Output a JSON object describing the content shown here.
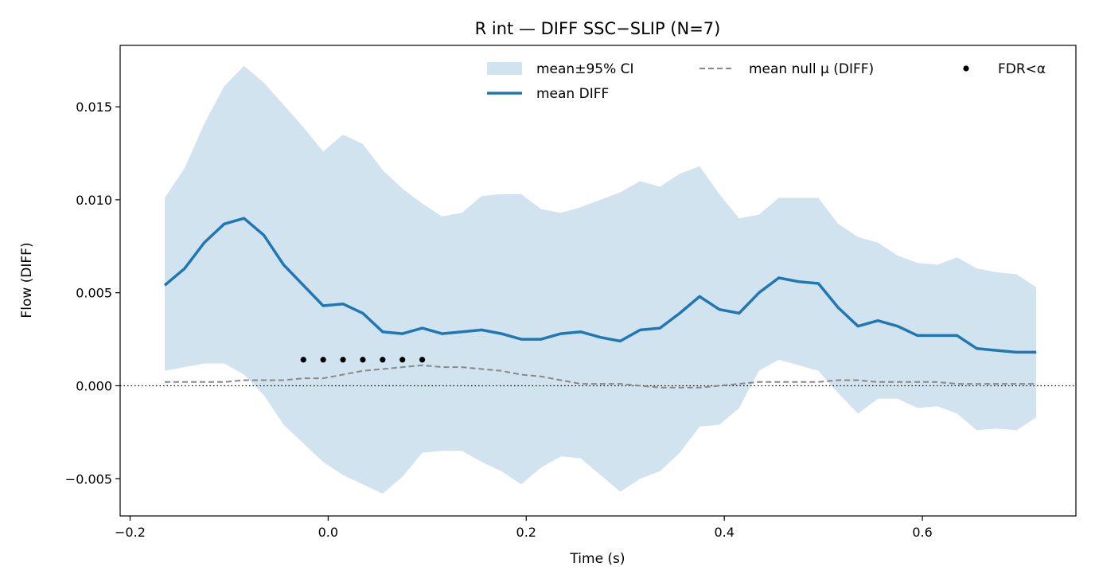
{
  "chart_data": {
    "type": "line",
    "title": "R int — DIFF SSC−SLIP (N=7)",
    "xlabel": "Time (s)",
    "ylabel": "Flow (DIFF)",
    "xlim": [
      -0.21,
      0.755
    ],
    "ylim": [
      -0.007,
      0.0183
    ],
    "x_ticks": [
      -0.2,
      0.0,
      0.2,
      0.4,
      0.6
    ],
    "x_tick_labels": [
      "−0.2",
      "0.0",
      "0.2",
      "0.4",
      "0.6"
    ],
    "y_ticks": [
      -0.005,
      0.0,
      0.005,
      0.01,
      0.015
    ],
    "y_tick_labels": [
      "−0.005",
      "0.000",
      "0.005",
      "0.010",
      "0.015"
    ],
    "grid": false,
    "legend_position": "top-right",
    "colors": {
      "ci_fill": "#d2e3f0",
      "mean": "#1f77b4",
      "null": "#888888",
      "sig": "#000000",
      "zero_line": "#000000"
    },
    "x": [
      -0.165,
      -0.145,
      -0.125,
      -0.105,
      -0.085,
      -0.065,
      -0.045,
      -0.025,
      -0.005,
      0.015,
      0.035,
      0.055,
      0.075,
      0.095,
      0.115,
      0.135,
      0.155,
      0.175,
      0.195,
      0.215,
      0.235,
      0.255,
      0.275,
      0.295,
      0.315,
      0.335,
      0.355,
      0.375,
      0.395,
      0.415,
      0.435,
      0.455,
      0.475,
      0.495,
      0.515,
      0.535,
      0.555,
      0.575,
      0.595,
      0.615,
      0.635,
      0.655,
      0.675,
      0.695,
      0.715
    ],
    "series": [
      {
        "name": "mean DIFF",
        "values": [
          0.0054,
          0.0063,
          0.0077,
          0.0087,
          0.009,
          0.0081,
          0.0065,
          0.0054,
          0.0043,
          0.0044,
          0.0039,
          0.0029,
          0.0028,
          0.0031,
          0.0028,
          0.0029,
          0.003,
          0.0028,
          0.0025,
          0.0025,
          0.0028,
          0.0029,
          0.0026,
          0.0024,
          0.003,
          0.0031,
          0.0039,
          0.0048,
          0.0041,
          0.0039,
          0.005,
          0.0058,
          0.0056,
          0.0055,
          0.0042,
          0.0032,
          0.0035,
          0.0032,
          0.0027,
          0.0027,
          0.0027,
          0.002,
          0.0019,
          0.0018,
          0.0018
        ]
      },
      {
        "name": "mean null μ (DIFF)",
        "values": [
          0.0002,
          0.0002,
          0.0002,
          0.0002,
          0.0003,
          0.0003,
          0.0003,
          0.0004,
          0.0004,
          0.0006,
          0.0008,
          0.0009,
          0.001,
          0.0011,
          0.001,
          0.001,
          0.0009,
          0.0008,
          0.0006,
          0.0005,
          0.0003,
          0.0001,
          0.0001,
          0.0001,
          0.0,
          -0.0001,
          -0.0001,
          -0.0001,
          0.0,
          0.0001,
          0.0002,
          0.0002,
          0.0002,
          0.0002,
          0.0003,
          0.0003,
          0.0002,
          0.0002,
          0.0002,
          0.0002,
          0.0001,
          0.0001,
          0.0001,
          0.0001,
          0.0001
        ]
      }
    ],
    "ci": {
      "name": "mean±95% CI",
      "upper": [
        0.0101,
        0.0117,
        0.0141,
        0.0161,
        0.0172,
        0.0163,
        0.0151,
        0.0139,
        0.0126,
        0.0135,
        0.013,
        0.0116,
        0.0106,
        0.0098,
        0.0091,
        0.0093,
        0.0102,
        0.0103,
        0.0103,
        0.0095,
        0.0093,
        0.0096,
        0.01,
        0.0104,
        0.011,
        0.0107,
        0.0114,
        0.0118,
        0.0103,
        0.009,
        0.0092,
        0.0101,
        0.0101,
        0.0101,
        0.0087,
        0.008,
        0.0077,
        0.007,
        0.0066,
        0.0065,
        0.0069,
        0.0063,
        0.0061,
        0.006,
        0.0053
      ],
      "lower": [
        0.0008,
        0.001,
        0.0012,
        0.0012,
        0.0006,
        -0.0005,
        -0.0021,
        -0.0031,
        -0.0041,
        -0.0048,
        -0.0053,
        -0.0058,
        -0.0049,
        -0.0036,
        -0.0035,
        -0.0035,
        -0.0041,
        -0.0046,
        -0.0053,
        -0.0044,
        -0.0038,
        -0.0039,
        -0.0048,
        -0.0057,
        -0.005,
        -0.0046,
        -0.0036,
        -0.0022,
        -0.0021,
        -0.0012,
        0.0008,
        0.0014,
        0.0011,
        0.0008,
        -0.0004,
        -0.0015,
        -0.0007,
        -0.0007,
        -0.0012,
        -0.0011,
        -0.0015,
        -0.0024,
        -0.0023,
        -0.0024,
        -0.0017
      ]
    },
    "significance": {
      "name": "FDR<α",
      "x": [
        -0.025,
        -0.005,
        0.015,
        0.035,
        0.055,
        0.075,
        0.095
      ],
      "y": [
        0.0014,
        0.0014,
        0.0014,
        0.0014,
        0.0014,
        0.0014,
        0.0014
      ]
    },
    "legend": [
      {
        "label": "mean±95% CI",
        "kind": "fill"
      },
      {
        "label": "mean null μ (DIFF)",
        "kind": "dashed"
      },
      {
        "label": "FDR<α",
        "kind": "dot"
      },
      {
        "label": "mean DIFF",
        "kind": "line"
      }
    ]
  }
}
